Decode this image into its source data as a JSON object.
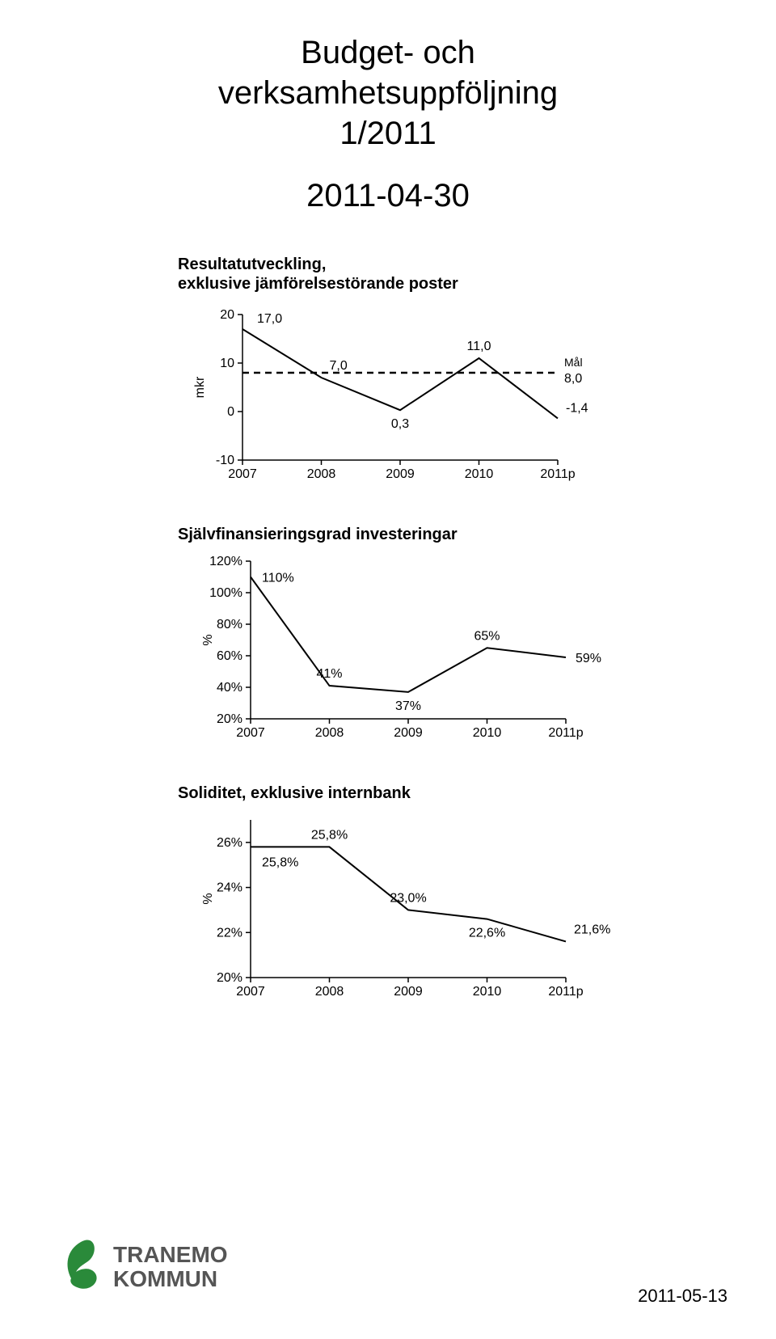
{
  "title_line1": "Budget- och",
  "title_line2": "verksamhetsuppföljning",
  "title_line3": "1/2011",
  "date": "2011-04-30",
  "footer_date": "2011-05-13",
  "logo": {
    "text1": "TRANEMO",
    "text2": "KOMMUN",
    "color": "#2a8a3a"
  },
  "charts": {
    "chart1": {
      "type": "line",
      "title_line1": "Resultatutveckling,",
      "title_line2": "exklusive jämförelsestörande poster",
      "categories": [
        "2007",
        "2008",
        "2009",
        "2010",
        "2011p"
      ],
      "values": [
        17.0,
        7.0,
        0.3,
        11.0,
        -1.4
      ],
      "value_labels": [
        "17,0",
        "7,0",
        "0,3",
        "11,0",
        "-1,4"
      ],
      "goal_value": 8.0,
      "goal_label": "Mål",
      "goal_value_label": "8,0",
      "ylabel": "mkr",
      "yticks": [
        -10,
        0,
        10,
        20
      ],
      "ylim": [
        -10,
        20
      ],
      "line_color": "#000000",
      "goal_line_color": "#000000",
      "background": "#ffffff",
      "axis_color": "#000000",
      "font_size_labels": 16,
      "font_size_ticks": 16,
      "line_width": 2
    },
    "chart2": {
      "type": "line",
      "title": "Självfinansieringsgrad investeringar",
      "categories": [
        "2007",
        "2008",
        "2009",
        "2010",
        "2011p"
      ],
      "values": [
        110,
        41,
        37,
        65,
        59
      ],
      "value_labels": [
        "110%",
        "41%",
        "37%",
        "65%",
        "59%"
      ],
      "ylabel": "%",
      "yticks": [
        20,
        40,
        60,
        80,
        100,
        120
      ],
      "ytick_labels": [
        "20%",
        "40%",
        "60%",
        "80%",
        "100%",
        "120%"
      ],
      "ylim": [
        20,
        120
      ],
      "line_color": "#000000",
      "background": "#ffffff",
      "axis_color": "#000000",
      "font_size_labels": 16,
      "font_size_ticks": 16,
      "line_width": 2
    },
    "chart3": {
      "type": "line",
      "title": "Soliditet, exklusive internbank",
      "categories": [
        "2007",
        "2008",
        "2009",
        "2010",
        "2011p"
      ],
      "values": [
        25.8,
        25.8,
        23.0,
        22.6,
        21.6
      ],
      "value_labels": [
        "25,8%",
        "25,8%",
        "23,0%",
        "22,6%",
        "21,6%"
      ],
      "label_positions": [
        "below",
        "above",
        "above",
        "below",
        "above"
      ],
      "ylabel": "%",
      "yticks": [
        20,
        22,
        24,
        26
      ],
      "ytick_labels": [
        "20%",
        "22%",
        "24%",
        "26%"
      ],
      "ylim": [
        20,
        27
      ],
      "line_color": "#000000",
      "background": "#ffffff",
      "axis_color": "#000000",
      "font_size_labels": 16,
      "font_size_ticks": 16,
      "line_width": 2
    }
  }
}
